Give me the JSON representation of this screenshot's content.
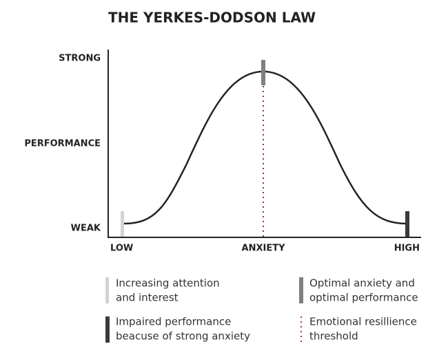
{
  "title": "THE YERKES-DODSON LAW",
  "y_labels": [
    "STRONG",
    "PERFORMANCE",
    "WEAK"
  ],
  "x_labels": [
    "LOW",
    "ANXIETY",
    "HIGH"
  ],
  "legend": [
    {
      "lines": [
        "Increasing attention",
        "and interest"
      ]
    },
    {
      "lines": [
        "Optimal anxiety and",
        "optimal performance"
      ]
    },
    {
      "lines": [
        "Impaired performance",
        "beacuse of strong anxiety"
      ]
    },
    {
      "lines": [
        "Emotional resillience",
        "threshold"
      ]
    }
  ]
}
